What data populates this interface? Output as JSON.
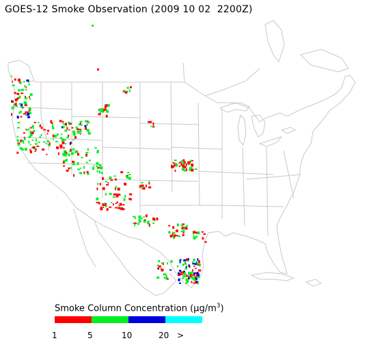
{
  "title": "GOES-12 Smoke Observation (2009 10 02  2200Z)",
  "legend": {
    "title_prefix": "Smoke Column Concentration (",
    "unit_mu": "μ",
    "unit_rest": "g/m",
    "unit_sup": "3",
    "title_suffix": ")",
    "segments": [
      {
        "color": "#ff0000"
      },
      {
        "color": "#00ee22"
      },
      {
        "color": "#0000dd"
      },
      {
        "color": "#00ffff"
      }
    ],
    "ticks": [
      "1",
      "5",
      "10",
      "20",
      ">"
    ]
  },
  "colors": {
    "boundary": "#c8c8c8",
    "smoke_low": "#ff0000",
    "smoke_mid": "#00ee22",
    "smoke_high": "#0000dd"
  }
}
